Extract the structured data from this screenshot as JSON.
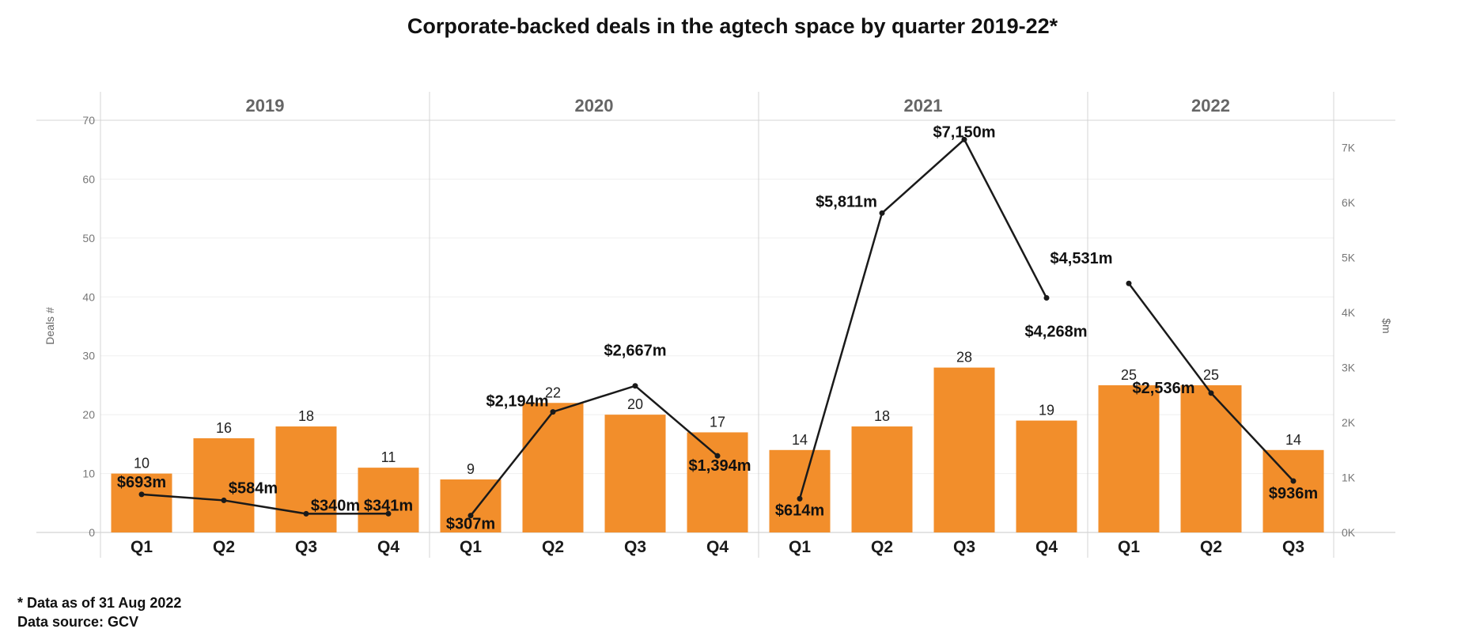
{
  "chart_data": {
    "type": "bar",
    "title": "Corporate-backed deals in the agtech space by quarter 2019-22*",
    "years": [
      {
        "label": "2019",
        "quarters": [
          "Q1",
          "Q2",
          "Q3",
          "Q4"
        ]
      },
      {
        "label": "2020",
        "quarters": [
          "Q1",
          "Q2",
          "Q3",
          "Q4"
        ]
      },
      {
        "label": "2021",
        "quarters": [
          "Q1",
          "Q2",
          "Q3",
          "Q4"
        ]
      },
      {
        "label": "2022",
        "quarters": [
          "Q1",
          "Q2",
          "Q3"
        ]
      }
    ],
    "deals": [
      10,
      16,
      18,
      11,
      9,
      22,
      20,
      17,
      14,
      18,
      28,
      19,
      25,
      25,
      14
    ],
    "amounts": [
      693,
      584,
      340,
      341,
      307,
      2194,
      2667,
      1394,
      614,
      5811,
      7150,
      4268,
      4531,
      2536,
      936
    ],
    "amount_labels": [
      "$693m",
      "$584m",
      "$340m",
      "$341m",
      "$307m",
      "$2,194m",
      "$2,667m",
      "$1,394m",
      "$614m",
      "$5,811m",
      "$7,150m",
      "$4,268m",
      "$4,531m",
      "$2,536m",
      "$936m"
    ],
    "series": [
      {
        "values": [
          10,
          16,
          18,
          11,
          9,
          22,
          20,
          17,
          14,
          18,
          28,
          19,
          25,
          25,
          14
        ],
        "axis": "left",
        "render": "bar",
        "color": "#f28e2b"
      },
      {
        "values": [
          693,
          584,
          340,
          341,
          307,
          2194,
          2667,
          1394,
          614,
          5811,
          7150,
          4268,
          4531,
          2536,
          936
        ],
        "axis": "right",
        "render": "line",
        "color": "#1a1a1a",
        "line_breaks_between_years": true
      }
    ],
    "ylabel": "Deals #",
    "y2label": "$m",
    "ylim": [
      0,
      70
    ],
    "y2lim": [
      0,
      7500
    ],
    "yticks": [
      0,
      10,
      20,
      30,
      40,
      50,
      60,
      70
    ],
    "y2ticks": [
      0,
      1000,
      2000,
      3000,
      4000,
      5000,
      6000,
      7000
    ],
    "y2tick_labels": [
      "0K",
      "1K",
      "2K",
      "3K",
      "4K",
      "5K",
      "6K",
      "7K"
    ],
    "grid": true,
    "bar_color": "#f28e2b",
    "line_color": "#1a1a1a"
  },
  "footnote": "* Data as of 31 Aug 2022",
  "source": "Data source: GCV"
}
